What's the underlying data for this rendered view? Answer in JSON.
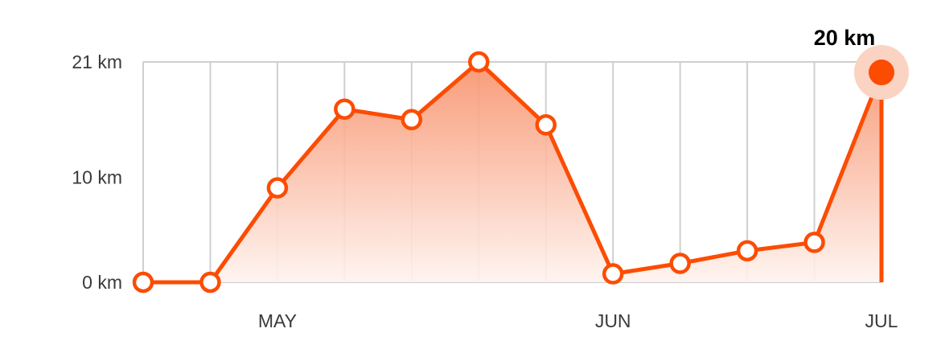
{
  "chart_data": {
    "type": "area",
    "x": [
      "",
      "",
      "MAY",
      "",
      "",
      "",
      "",
      "JUN",
      "",
      "",
      "",
      "JUL"
    ],
    "series": [
      {
        "values": [
          0,
          0,
          9,
          16.5,
          15.5,
          21,
          15,
          0.8,
          1.8,
          3,
          3.8,
          20
        ]
      }
    ],
    "xtick_labels": [
      "MAY",
      "JUN",
      "JUL"
    ],
    "yticks": [
      {
        "value": 0,
        "label": "0 km"
      },
      {
        "value": 10,
        "label": "10 km"
      },
      {
        "value": 21,
        "label": "21 km"
      }
    ],
    "ylim": [
      0,
      21
    ],
    "grid": true,
    "highlight": {
      "index": 11,
      "label": "20 km"
    },
    "colors": {
      "line": "#fc4c02",
      "fill_top": "#f8906a",
      "fill_bottom": "#fef3ee",
      "grid": "#cfcfcf",
      "halo": "#fbd3c2"
    }
  }
}
